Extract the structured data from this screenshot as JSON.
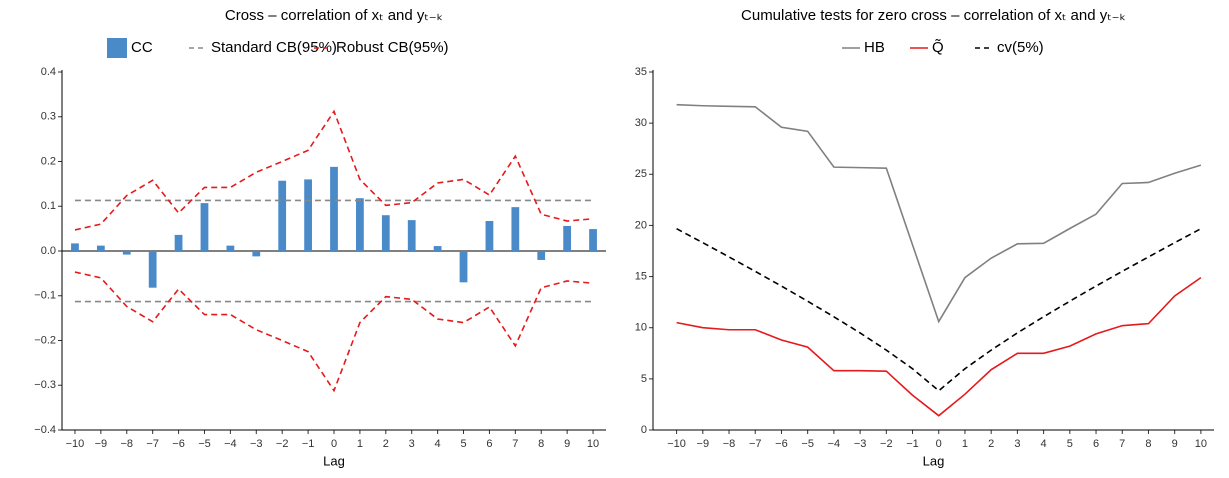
{
  "chart_data": [
    {
      "type": "bar",
      "title": "Cross – correlation of xₜ and yₜ₋ₖ",
      "xlabel": "Lag",
      "categories": [
        "−10",
        "−9",
        "−8",
        "−7",
        "−6",
        "−5",
        "−4",
        "−3",
        "−2",
        "−1",
        "0",
        "1",
        "2",
        "3",
        "4",
        "5",
        "6",
        "7",
        "8",
        "9",
        "10"
      ],
      "series": [
        {
          "name": "CC",
          "kind": "bar",
          "color": "#4a8ac9",
          "values": [
            0.017,
            0.012,
            -0.008,
            -0.082,
            0.036,
            0.107,
            0.012,
            -0.012,
            0.157,
            0.16,
            0.188,
            0.118,
            0.08,
            0.069,
            0.011,
            -0.07,
            0.067,
            0.098,
            -0.02,
            0.056,
            0.049
          ]
        },
        {
          "name": "Standard CB(95%)",
          "kind": "band",
          "color": "#888888",
          "dashed": true,
          "values": [
            0.113,
            0.113,
            0.113,
            0.113,
            0.113,
            0.113,
            0.113,
            0.113,
            0.113,
            0.113,
            0.113,
            0.113,
            0.113,
            0.113,
            0.113,
            0.113,
            0.113,
            0.113,
            0.113,
            0.113,
            0.113
          ],
          "lower": [
            -0.113,
            -0.113,
            -0.113,
            -0.113,
            -0.113,
            -0.113,
            -0.113,
            -0.113,
            -0.113,
            -0.113,
            -0.113,
            -0.113,
            -0.113,
            -0.113,
            -0.113,
            -0.113,
            -0.113,
            -0.113,
            -0.113,
            -0.113,
            -0.113
          ]
        },
        {
          "name": "Robust CB(95%)",
          "kind": "band",
          "color": "#e41a1c",
          "dashed": true,
          "values": [
            0.047,
            0.06,
            0.124,
            0.158,
            0.085,
            0.142,
            0.142,
            0.176,
            0.2,
            0.225,
            0.312,
            0.16,
            0.102,
            0.108,
            0.152,
            0.16,
            0.125,
            0.212,
            0.082,
            0.067,
            0.072
          ],
          "lower": [
            -0.047,
            -0.06,
            -0.124,
            -0.158,
            -0.085,
            -0.142,
            -0.142,
            -0.176,
            -0.2,
            -0.225,
            -0.312,
            -0.16,
            -0.102,
            -0.108,
            -0.152,
            -0.16,
            -0.125,
            -0.212,
            -0.082,
            -0.067,
            -0.072
          ]
        }
      ],
      "ylim": [
        -0.4,
        0.4
      ],
      "yticks": [
        {
          "value": -0.4,
          "label": "−0.4"
        },
        {
          "value": -0.3,
          "label": "−0.3"
        },
        {
          "value": -0.2,
          "label": "−0.2"
        },
        {
          "value": -0.1,
          "label": "−0.1"
        },
        {
          "value": 0,
          "label": "0.0"
        },
        0.1,
        0.2,
        0.3,
        0.4
      ]
    },
    {
      "type": "line",
      "title": "Cumulative tests for zero cross – correlation of xₜ and yₜ₋ₖ",
      "xlabel": "Lag",
      "x": [
        -10,
        -9,
        -8,
        -7,
        -6,
        -5,
        -4,
        -3,
        -2,
        -1,
        0,
        1,
        2,
        3,
        4,
        5,
        6,
        7,
        8,
        9,
        10
      ],
      "series": [
        {
          "name": "HB",
          "color": "#808080",
          "dashed": false,
          "values": [
            31.8,
            31.7,
            31.65,
            31.6,
            29.6,
            29.2,
            25.7,
            25.65,
            25.6,
            18.1,
            10.6,
            14.9,
            16.8,
            18.2,
            18.25,
            19.7,
            21.1,
            24.1,
            24.2,
            25.1,
            25.9
          ]
        },
        {
          "name": "Q̃",
          "color": "#e41a1c",
          "dashed": false,
          "values": [
            10.5,
            10.0,
            9.8,
            9.8,
            8.8,
            8.1,
            5.8,
            5.8,
            5.75,
            3.4,
            1.4,
            3.5,
            5.9,
            7.5,
            7.5,
            8.2,
            9.4,
            10.2,
            10.4,
            13.1,
            14.9
          ]
        },
        {
          "name": "cv(5%)",
          "color": "#000000",
          "dashed": true,
          "values": [
            19.68,
            18.31,
            16.92,
            15.51,
            14.07,
            12.59,
            11.07,
            9.49,
            7.81,
            5.99,
            3.84,
            5.99,
            7.81,
            9.49,
            11.07,
            12.59,
            14.07,
            15.51,
            16.92,
            18.31,
            19.68
          ]
        }
      ],
      "xlim": [
        -10.9,
        10.5
      ],
      "xticks": [
        {
          "value": -10,
          "label": "−10"
        },
        {
          "value": -9,
          "label": "−9"
        },
        {
          "value": -8,
          "label": "−8"
        },
        {
          "value": -7,
          "label": "−7"
        },
        {
          "value": -6,
          "label": "−6"
        },
        {
          "value": -5,
          "label": "−5"
        },
        {
          "value": -4,
          "label": "−4"
        },
        {
          "value": -3,
          "label": "−3"
        },
        {
          "value": -2,
          "label": "−2"
        },
        {
          "value": -1,
          "label": "−1"
        },
        0,
        1,
        2,
        3,
        4,
        5,
        6,
        7,
        8,
        9,
        10
      ],
      "ylim": [
        0,
        35
      ],
      "yticks": [
        0,
        5,
        10,
        15,
        20,
        25,
        30,
        35
      ]
    }
  ]
}
